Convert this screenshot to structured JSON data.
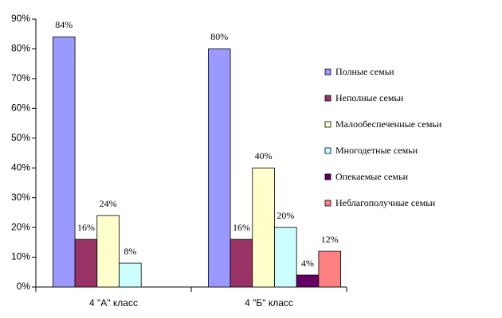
{
  "chart_data": {
    "type": "bar",
    "categories": [
      "4 \"А\" класс",
      "4 \"Б\" класс"
    ],
    "series": [
      {
        "name": "Полные семьи",
        "color": "#9999ff",
        "values": [
          84,
          80
        ],
        "value_labels": [
          "84%",
          "80%"
        ]
      },
      {
        "name": "Неполные семьи",
        "color": "#993366",
        "values": [
          16,
          16
        ],
        "value_labels": [
          "16%",
          "16%"
        ]
      },
      {
        "name": "Малообеспеченные семьи",
        "color": "#ffffcc",
        "values": [
          24,
          40
        ],
        "value_labels": [
          "24%",
          "40%"
        ]
      },
      {
        "name": "Многодетные семьи",
        "color": "#ccffff",
        "values": [
          8,
          20
        ],
        "value_labels": [
          "8%",
          "20%"
        ]
      },
      {
        "name": "Опекаемые семьи",
        "color": "#660066",
        "values": [
          null,
          4
        ],
        "value_labels": [
          null,
          "4%"
        ]
      },
      {
        "name": "Неблагополучные семьи",
        "color": "#ff8080",
        "values": [
          null,
          12
        ],
        "value_labels": [
          null,
          "12%"
        ]
      }
    ],
    "ylim": [
      0,
      90
    ],
    "yticks": [
      {
        "value": 0,
        "label": "0%"
      },
      {
        "value": 10,
        "label": "10%"
      },
      {
        "value": 20,
        "label": "20%"
      },
      {
        "value": 30,
        "label": "30%"
      },
      {
        "value": 40,
        "label": "40%"
      },
      {
        "value": 50,
        "label": "50%"
      },
      {
        "value": 60,
        "label": "60%"
      },
      {
        "value": 70,
        "label": "70%"
      },
      {
        "value": 80,
        "label": "80%"
      },
      {
        "value": 90,
        "label": "90%"
      }
    ],
    "grid": false,
    "legend": "right"
  }
}
